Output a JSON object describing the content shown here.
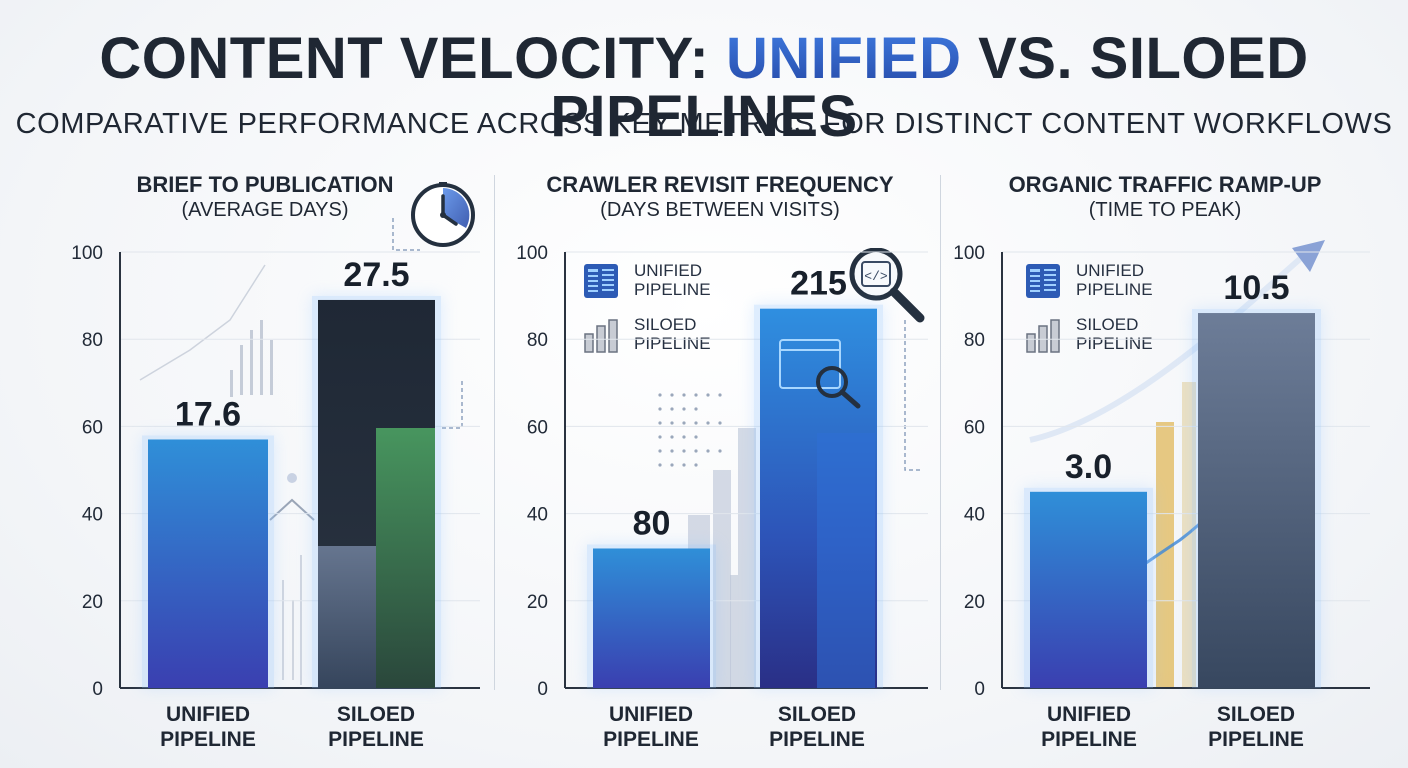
{
  "header": {
    "title_before": "CONTENT VELOCITY: ",
    "title_accent": "UNIFIED",
    "title_after": " VS. SILOED PIPELINES",
    "subtitle": "COMPARATIVE PERFORMANCE ACROSS KEY METRICS FOR DISTINCT CONTENT WORKFLOWS"
  },
  "colors": {
    "unified": "#2a7fd0",
    "siloed_dark": "#1f2a38",
    "siloed_green": "#3f8a55",
    "accent": "#2f5fc4"
  },
  "chart_data": [
    {
      "type": "bar",
      "title": "BRIEF TO PUBLICATION",
      "subtitle": "(AVERAGE DAYS)",
      "categories": [
        "UNIFIED PIPELINE",
        "SILOED PIPELINE"
      ],
      "values": [
        17.6,
        27.5
      ],
      "data_labels": [
        "17.6",
        "27.5"
      ],
      "ylim": [
        0,
        100
      ],
      "yticks": [
        0,
        20,
        40,
        60,
        80,
        100
      ],
      "bar_scale_heights": [
        57,
        89
      ],
      "legend": [],
      "icon": "clock-icon"
    },
    {
      "type": "bar",
      "title": "CRAWLER REVISIT FREQUENCY",
      "subtitle": "(DAYS BETWEEN VISITS)",
      "categories": [
        "UNIFIED PIPELINE",
        "SILOED PIPELINE"
      ],
      "values": [
        80,
        215
      ],
      "data_labels": [
        "80",
        "215"
      ],
      "ylim": [
        0,
        100
      ],
      "yticks": [
        0,
        20,
        40,
        60,
        80,
        100
      ],
      "bar_scale_heights": [
        32,
        87
      ],
      "legend": [
        {
          "label": "UNIFIED PIPELINE",
          "icon": "document-icon"
        },
        {
          "label": "SILOED PIPELINE",
          "icon": "bar-chart-icon"
        }
      ],
      "icon": "code-search-icon"
    },
    {
      "type": "bar",
      "title": "ORGANIC TRAFFIC RAMP-UP",
      "subtitle": "(TIME TO PEAK)",
      "categories": [
        "UNIFIED PIPELINE",
        "SILOED PIPELINE"
      ],
      "values": [
        3.0,
        10.5
      ],
      "data_labels": [
        "3.0",
        "10.5"
      ],
      "ylim": [
        0,
        100
      ],
      "yticks": [
        0,
        20,
        40,
        60,
        80,
        100
      ],
      "bar_scale_heights": [
        45,
        86
      ],
      "legend": [
        {
          "label": "UNIFIED PIPELINE",
          "icon": "document-icon"
        },
        {
          "label": "SILOED PIPELINE",
          "icon": "bar-chart-icon"
        }
      ],
      "icon": "growth-arrow-icon"
    }
  ]
}
